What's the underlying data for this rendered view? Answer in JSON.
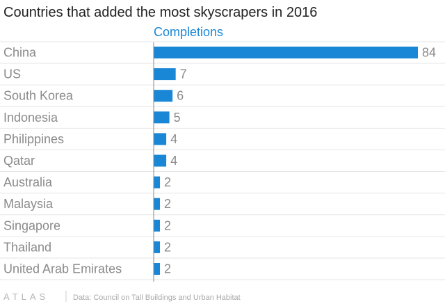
{
  "chart_data": {
    "type": "bar",
    "orientation": "horizontal",
    "title": "Countries that added the most skyscrapers in 2016",
    "series": [
      {
        "name": "Completions",
        "values": [
          84,
          7,
          6,
          5,
          4,
          4,
          2,
          2,
          2,
          2,
          2
        ]
      }
    ],
    "categories": [
      "China",
      "US",
      "South Korea",
      "Indonesia",
      "Philippines",
      "Qatar",
      "Australia",
      "Malaysia",
      "Singapore",
      "Thailand",
      "United Arab Emirates"
    ],
    "xlim": [
      0,
      84
    ],
    "grid": true,
    "colors": {
      "bar": "#1a87d6"
    }
  },
  "footer": {
    "brand": "ATLAS",
    "source": "Data: Council on Tall Buildings and Urban Habitat"
  }
}
